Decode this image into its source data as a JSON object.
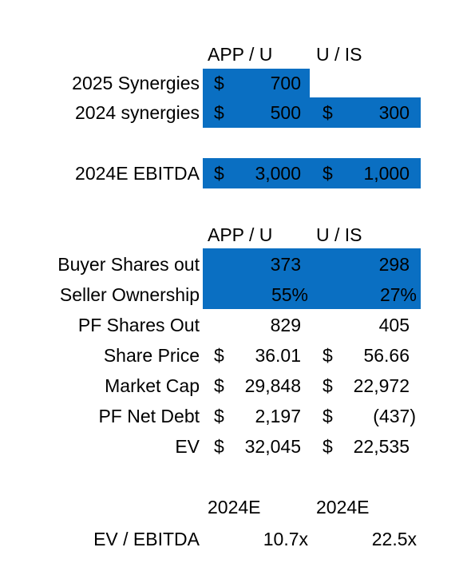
{
  "colors": {
    "highlight": "#0a6fc2",
    "text": "#000000",
    "background": "#ffffff"
  },
  "synergies_section": {
    "headers": [
      "APP / U",
      "U / IS"
    ],
    "rows": [
      {
        "label": "2025 Synergies",
        "c1_cur": "$",
        "c1_val": "700",
        "c2_cur": "",
        "c2_val": ""
      },
      {
        "label": "2024 synergies",
        "c1_cur": "$",
        "c1_val": "500",
        "c2_cur": "$",
        "c2_val": "300"
      }
    ]
  },
  "ebitda_row": {
    "label": "2024E EBITDA",
    "c1_cur": "$",
    "c1_val": "3,000",
    "c2_cur": "$",
    "c2_val": "1,000"
  },
  "shares_section": {
    "headers": [
      "APP / U",
      "U / IS"
    ],
    "buyer_shares": {
      "label": "Buyer Shares out",
      "c1_val": "373",
      "c2_val": "298"
    },
    "seller_ownership": {
      "label": "Seller Ownership",
      "c1_val": "55%",
      "c2_val": "27%"
    },
    "pf_shares": {
      "label": "PF Shares Out",
      "c1_val": "829",
      "c2_val": "405"
    },
    "share_price": {
      "label": "Share Price",
      "c1_cur": "$",
      "c1_val": "36.01",
      "c2_cur": "$",
      "c2_val": "56.66"
    },
    "market_cap": {
      "label": "Market Cap",
      "c1_cur": "$",
      "c1_val": "29,848",
      "c2_cur": "$",
      "c2_val": "22,972"
    },
    "pf_net_debt": {
      "label": "PF Net Debt",
      "c1_cur": "$",
      "c1_val": "2,197",
      "c2_cur": "$",
      "c2_val": "(437)"
    },
    "ev": {
      "label": "EV",
      "c1_cur": "$",
      "c1_val": "32,045",
      "c2_cur": "$",
      "c2_val": "22,535"
    }
  },
  "multiple_section": {
    "headers": [
      "2024E",
      "2024E"
    ],
    "ev_ebitda": {
      "label": "EV / EBITDA",
      "c1_val": "10.7x",
      "c2_val": "22.5x"
    }
  }
}
